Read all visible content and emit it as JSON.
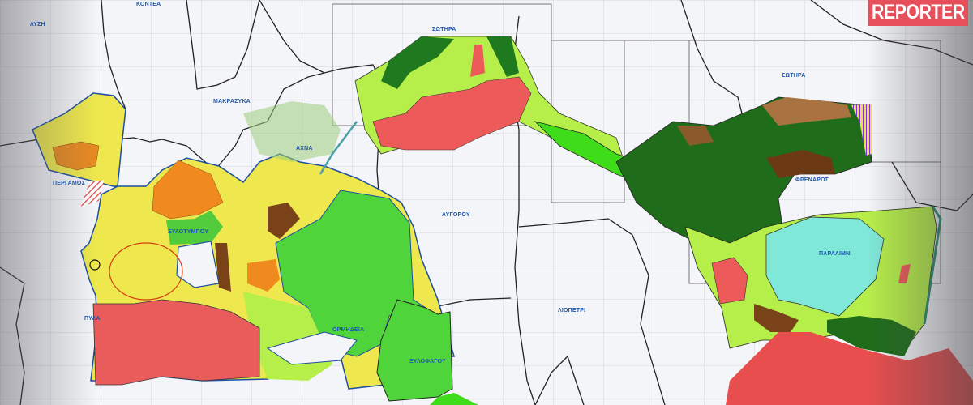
{
  "brand": {
    "logo_text": "REPORTER",
    "logo_color": "#e7505a"
  },
  "map": {
    "type": "land-use zoning map",
    "places": [
      {
        "name": "ΚΟΝΤΕΑ"
      },
      {
        "name": "ΛΥΣΗ"
      },
      {
        "name": "ΜΑΚΡΑΣΥΚΑ"
      },
      {
        "name": "ΑΧΝΑ"
      },
      {
        "name": "ΠΕΡΓΑΜΟΣ"
      },
      {
        "name": "ΞΥΛΟΤΥΜΠΟΥ"
      },
      {
        "name": "ΠΥΛΑ"
      },
      {
        "name": "ΑΥΓΟΡΟΥ"
      },
      {
        "name": "ΟΡΜΗΔΕΙΑ"
      },
      {
        "name": "ΞΥΛΟΦΑΓΟΥ"
      },
      {
        "name": "ΛΙΟΠΕΤΡΙ"
      },
      {
        "name": "ΣΩΤΗΡΑ"
      },
      {
        "name": "ΦΡΕΝΑΡΟΣ"
      },
      {
        "name": "ΠΑΡΑΛΙΜΝΙ"
      },
      {
        "name": "ΣΩΤΗΡΑ"
      }
    ],
    "zone_colors": {
      "residential": "#f0e84a",
      "tourism": "#f08a1e",
      "agricultural": "#b6ee4a",
      "protected": "#3ed13a",
      "forest": "#1f7a1f",
      "military": "#ec5a5a",
      "quarry": "#7a4218",
      "lake": "#7fe8d8"
    }
  }
}
